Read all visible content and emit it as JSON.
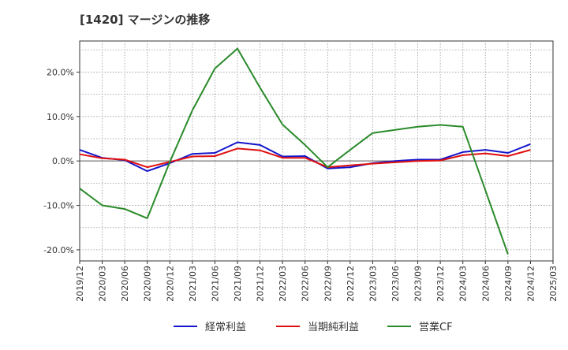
{
  "chart_data": {
    "type": "line",
    "title": "[1420]  マージンの推移",
    "xlabel": "",
    "ylabel": "",
    "x": [
      "2019/12",
      "2020/03",
      "2020/06",
      "2020/09",
      "2020/12",
      "2021/03",
      "2021/06",
      "2021/09",
      "2021/12",
      "2022/03",
      "2022/06",
      "2022/09",
      "2022/12",
      "2023/03",
      "2023/06",
      "2023/09",
      "2023/12",
      "2024/03",
      "2024/06",
      "2024/09",
      "2024/12",
      "2025/03"
    ],
    "ylim": [
      -22.5,
      27.0
    ],
    "yticks": [
      {
        "value": 20,
        "label": "20.0%"
      },
      {
        "value": 10,
        "label": "10.0%"
      },
      {
        "value": 0,
        "label": "0.0%"
      },
      {
        "value": -10,
        "label": "-10.0%"
      },
      {
        "value": -20,
        "label": "-20.0%"
      }
    ],
    "grid": true,
    "legend_position": "bottom",
    "series": [
      {
        "name": "経常利益",
        "color": "#1515cc",
        "values": [
          2.5,
          0.7,
          0.2,
          -2.3,
          -0.5,
          1.6,
          1.8,
          4.2,
          3.6,
          1.0,
          1.1,
          -1.7,
          -1.4,
          -0.5,
          0.0,
          0.3,
          0.3,
          2.0,
          2.5,
          1.8,
          3.8,
          null
        ]
      },
      {
        "name": "当期純利益",
        "color": "#e01010",
        "values": [
          1.5,
          0.6,
          0.3,
          -1.4,
          -0.2,
          1.0,
          1.1,
          2.8,
          2.4,
          0.7,
          0.7,
          -1.4,
          -1.0,
          -0.6,
          -0.3,
          0.0,
          0.1,
          1.3,
          1.7,
          1.1,
          2.5,
          null
        ]
      },
      {
        "name": "営業CF",
        "color": "#2a8a2a",
        "values": [
          -6.2,
          -10.0,
          -10.8,
          -12.9,
          -0.2,
          11.4,
          20.8,
          25.3,
          16.5,
          8.2,
          3.6,
          -1.4,
          2.5,
          6.3,
          7.0,
          7.7,
          8.1,
          7.7,
          -6.6,
          -21.0,
          null,
          null
        ]
      }
    ]
  }
}
